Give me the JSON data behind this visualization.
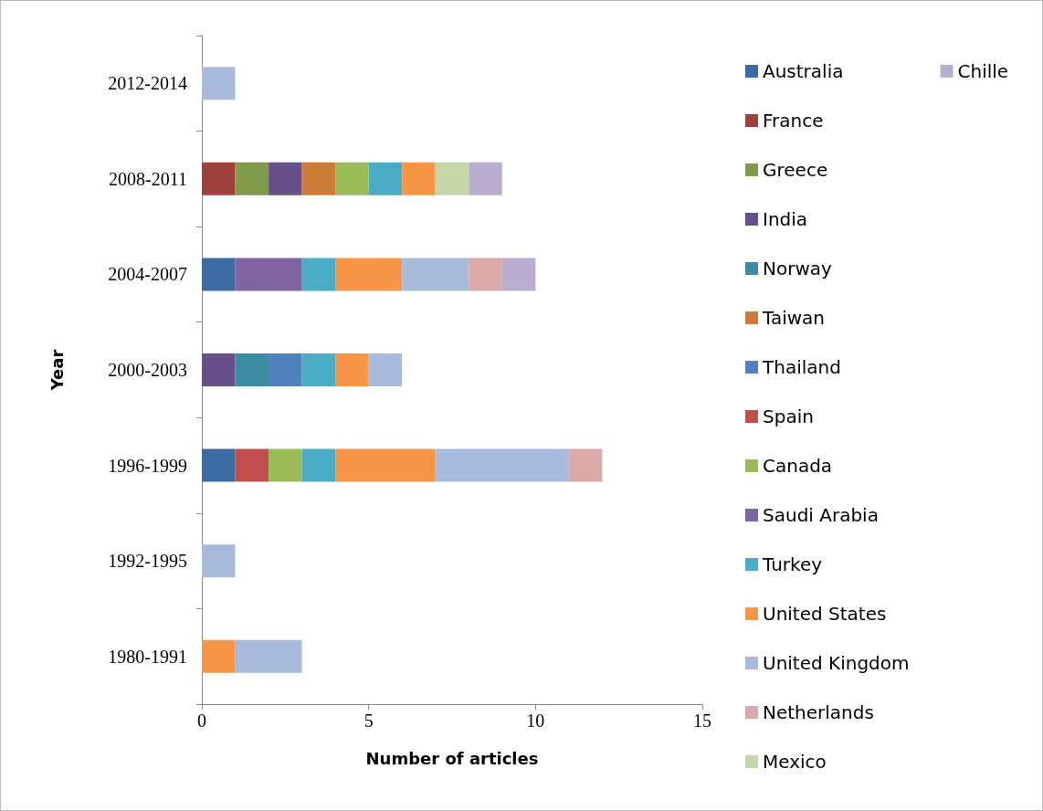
{
  "chart_data": {
    "type": "bar",
    "orientation": "horizontal",
    "stacked": true,
    "xlabel": "Number of articles",
    "ylabel": "Year",
    "categories": [
      "2012-2014",
      "2008-2011",
      "2004-2007",
      "2000-2003",
      "1996-1999",
      "1992-1995",
      "1980-1991"
    ],
    "xlim": [
      0,
      15
    ],
    "xticks": [
      0,
      5,
      10,
      15
    ],
    "grid": false,
    "legend": "right",
    "series": [
      {
        "name": "Australia",
        "color": "#3d6aa2",
        "values": [
          0,
          0,
          1,
          0,
          1,
          0,
          0
        ]
      },
      {
        "name": "France",
        "color": "#a0403c",
        "values": [
          0,
          1,
          0,
          0,
          0,
          0,
          0
        ]
      },
      {
        "name": "Greece",
        "color": "#7f9a48",
        "values": [
          0,
          1,
          0,
          0,
          0,
          0,
          0
        ]
      },
      {
        "name": "India",
        "color": "#67508a",
        "values": [
          0,
          1,
          0,
          1,
          0,
          0,
          0
        ]
      },
      {
        "name": "Norway",
        "color": "#3c8da3",
        "values": [
          0,
          0,
          0,
          1,
          0,
          0,
          0
        ]
      },
      {
        "name": "Taiwan",
        "color": "#cc7b38",
        "values": [
          0,
          1,
          0,
          0,
          0,
          0,
          0
        ]
      },
      {
        "name": "Thailand",
        "color": "#4f81bd",
        "values": [
          0,
          0,
          0,
          1,
          0,
          0,
          0
        ]
      },
      {
        "name": "Spain",
        "color": "#c0504d",
        "values": [
          0,
          0,
          0,
          0,
          1,
          0,
          0
        ]
      },
      {
        "name": "Canada",
        "color": "#9bbb59",
        "values": [
          0,
          1,
          0,
          0,
          1,
          0,
          0
        ]
      },
      {
        "name": "Saudi Arabia",
        "color": "#8064a2",
        "values": [
          0,
          0,
          2,
          0,
          0,
          0,
          0
        ]
      },
      {
        "name": "Turkey",
        "color": "#4bacc6",
        "values": [
          0,
          1,
          1,
          1,
          1,
          0,
          0
        ]
      },
      {
        "name": "United States",
        "color": "#f79646",
        "values": [
          0,
          1,
          2,
          1,
          3,
          0,
          1
        ]
      },
      {
        "name": "United Kingdom",
        "color": "#a9bbdc",
        "values": [
          1,
          0,
          2,
          1,
          4,
          1,
          2
        ]
      },
      {
        "name": "Netherlands",
        "color": "#dba9a8",
        "values": [
          0,
          0,
          1,
          0,
          1,
          0,
          0
        ]
      },
      {
        "name": "Mexico",
        "color": "#c4d7a8",
        "values": [
          0,
          1,
          0,
          0,
          0,
          0,
          0
        ]
      },
      {
        "name": "Chille",
        "color": "#b9aecf",
        "values": [
          0,
          1,
          1,
          0,
          0,
          0,
          0
        ]
      }
    ]
  }
}
